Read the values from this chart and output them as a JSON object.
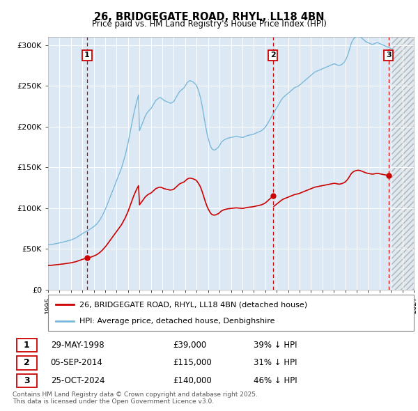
{
  "title": "26, BRIDGEGATE ROAD, RHYL, LL18 4BN",
  "subtitle": "Price paid vs. HM Land Registry's House Price Index (HPI)",
  "xlim": [
    1995,
    2027
  ],
  "ylim": [
    0,
    310000
  ],
  "yticks": [
    0,
    50000,
    100000,
    150000,
    200000,
    250000,
    300000
  ],
  "ytick_labels": [
    "£0",
    "£50K",
    "£100K",
    "£150K",
    "£200K",
    "£250K",
    "£300K"
  ],
  "bg_color": "#dce9f5",
  "hpi_color": "#7ab8d9",
  "price_color": "#cc0000",
  "dashed_line_color": "#cc0000",
  "legend_label_price": "26, BRIDGEGATE ROAD, RHYL, LL18 4BN (detached house)",
  "legend_label_hpi": "HPI: Average price, detached house, Denbighshire",
  "transactions": [
    {
      "num": 1,
      "date": "29-MAY-1998",
      "year": 1998.42,
      "price": 39000,
      "pct": "39%",
      "dir": "↓"
    },
    {
      "num": 2,
      "date": "05-SEP-2014",
      "year": 2014.68,
      "price": 115000,
      "pct": "31%",
      "dir": "↓"
    },
    {
      "num": 3,
      "date": "25-OCT-2024",
      "year": 2024.81,
      "price": 140000,
      "pct": "46%",
      "dir": "↓"
    }
  ],
  "footer": "Contains HM Land Registry data © Crown copyright and database right 2025.\nThis data is licensed under the Open Government Licence v3.0.",
  "hpi_data_years": [
    1995.0,
    1995.083,
    1995.167,
    1995.25,
    1995.333,
    1995.417,
    1995.5,
    1995.583,
    1995.667,
    1995.75,
    1995.833,
    1995.917,
    1996.0,
    1996.083,
    1996.167,
    1996.25,
    1996.333,
    1996.417,
    1996.5,
    1996.583,
    1996.667,
    1996.75,
    1996.833,
    1996.917,
    1997.0,
    1997.083,
    1997.167,
    1997.25,
    1997.333,
    1997.417,
    1997.5,
    1997.583,
    1997.667,
    1997.75,
    1997.833,
    1997.917,
    1998.0,
    1998.083,
    1998.167,
    1998.25,
    1998.333,
    1998.417,
    1998.5,
    1998.583,
    1998.667,
    1998.75,
    1998.833,
    1998.917,
    1999.0,
    1999.083,
    1999.167,
    1999.25,
    1999.333,
    1999.417,
    1999.5,
    1999.583,
    1999.667,
    1999.75,
    1999.833,
    1999.917,
    2000.0,
    2000.083,
    2000.167,
    2000.25,
    2000.333,
    2000.417,
    2000.5,
    2000.583,
    2000.667,
    2000.75,
    2000.833,
    2000.917,
    2001.0,
    2001.083,
    2001.167,
    2001.25,
    2001.333,
    2001.417,
    2001.5,
    2001.583,
    2001.667,
    2001.75,
    2001.833,
    2001.917,
    2002.0,
    2002.083,
    2002.167,
    2002.25,
    2002.333,
    2002.417,
    2002.5,
    2002.583,
    2002.667,
    2002.75,
    2002.833,
    2002.917,
    2003.0,
    2003.083,
    2003.167,
    2003.25,
    2003.333,
    2003.417,
    2003.5,
    2003.583,
    2003.667,
    2003.75,
    2003.833,
    2003.917,
    2004.0,
    2004.083,
    2004.167,
    2004.25,
    2004.333,
    2004.417,
    2004.5,
    2004.583,
    2004.667,
    2004.75,
    2004.833,
    2004.917,
    2005.0,
    2005.083,
    2005.167,
    2005.25,
    2005.333,
    2005.417,
    2005.5,
    2005.583,
    2005.667,
    2005.75,
    2005.833,
    2005.917,
    2006.0,
    2006.083,
    2006.167,
    2006.25,
    2006.333,
    2006.417,
    2006.5,
    2006.583,
    2006.667,
    2006.75,
    2006.833,
    2006.917,
    2007.0,
    2007.083,
    2007.167,
    2007.25,
    2007.333,
    2007.417,
    2007.5,
    2007.583,
    2007.667,
    2007.75,
    2007.833,
    2007.917,
    2008.0,
    2008.083,
    2008.167,
    2008.25,
    2008.333,
    2008.417,
    2008.5,
    2008.583,
    2008.667,
    2008.75,
    2008.833,
    2008.917,
    2009.0,
    2009.083,
    2009.167,
    2009.25,
    2009.333,
    2009.417,
    2009.5,
    2009.583,
    2009.667,
    2009.75,
    2009.833,
    2009.917,
    2010.0,
    2010.083,
    2010.167,
    2010.25,
    2010.333,
    2010.417,
    2010.5,
    2010.583,
    2010.667,
    2010.75,
    2010.833,
    2010.917,
    2011.0,
    2011.083,
    2011.167,
    2011.25,
    2011.333,
    2011.417,
    2011.5,
    2011.583,
    2011.667,
    2011.75,
    2011.833,
    2011.917,
    2012.0,
    2012.083,
    2012.167,
    2012.25,
    2012.333,
    2012.417,
    2012.5,
    2012.583,
    2012.667,
    2012.75,
    2012.833,
    2012.917,
    2013.0,
    2013.083,
    2013.167,
    2013.25,
    2013.333,
    2013.417,
    2013.5,
    2013.583,
    2013.667,
    2013.75,
    2013.833,
    2013.917,
    2014.0,
    2014.083,
    2014.167,
    2014.25,
    2014.333,
    2014.417,
    2014.5,
    2014.583,
    2014.667,
    2014.75,
    2014.833,
    2014.917,
    2015.0,
    2015.083,
    2015.167,
    2015.25,
    2015.333,
    2015.417,
    2015.5,
    2015.583,
    2015.667,
    2015.75,
    2015.833,
    2015.917,
    2016.0,
    2016.083,
    2016.167,
    2016.25,
    2016.333,
    2016.417,
    2016.5,
    2016.583,
    2016.667,
    2016.75,
    2016.833,
    2016.917,
    2017.0,
    2017.083,
    2017.167,
    2017.25,
    2017.333,
    2017.417,
    2017.5,
    2017.583,
    2017.667,
    2017.75,
    2017.833,
    2017.917,
    2018.0,
    2018.083,
    2018.167,
    2018.25,
    2018.333,
    2018.417,
    2018.5,
    2018.583,
    2018.667,
    2018.75,
    2018.833,
    2018.917,
    2019.0,
    2019.083,
    2019.167,
    2019.25,
    2019.333,
    2019.417,
    2019.5,
    2019.583,
    2019.667,
    2019.75,
    2019.833,
    2019.917,
    2020.0,
    2020.083,
    2020.167,
    2020.25,
    2020.333,
    2020.417,
    2020.5,
    2020.583,
    2020.667,
    2020.75,
    2020.833,
    2020.917,
    2021.0,
    2021.083,
    2021.167,
    2021.25,
    2021.333,
    2021.417,
    2021.5,
    2021.583,
    2021.667,
    2021.75,
    2021.833,
    2021.917,
    2022.0,
    2022.083,
    2022.167,
    2022.25,
    2022.333,
    2022.417,
    2022.5,
    2022.583,
    2022.667,
    2022.75,
    2022.833,
    2022.917,
    2023.0,
    2023.083,
    2023.167,
    2023.25,
    2023.333,
    2023.417,
    2023.5,
    2023.583,
    2023.667,
    2023.75,
    2023.833,
    2023.917,
    2024.0,
    2024.083,
    2024.167,
    2024.25,
    2024.333,
    2024.417,
    2024.5,
    2024.583,
    2024.667,
    2024.75,
    2024.833,
    2024.917,
    2025.0
  ],
  "hpi_data_values": [
    55000,
    55200,
    55100,
    55300,
    55500,
    55800,
    56000,
    56300,
    56500,
    56700,
    57000,
    57200,
    57500,
    57800,
    58000,
    58200,
    58500,
    58800,
    59200,
    59500,
    59800,
    60100,
    60400,
    60700,
    61000,
    61500,
    62000,
    62500,
    63000,
    63500,
    64200,
    65000,
    65800,
    66500,
    67200,
    68000,
    68800,
    69500,
    70200,
    70800,
    71500,
    72000,
    72800,
    73500,
    74200,
    75000,
    75800,
    76500,
    77500,
    78500,
    79500,
    80500,
    82000,
    83500,
    85000,
    87000,
    89000,
    91000,
    93500,
    96000,
    98500,
    101000,
    104000,
    107000,
    110000,
    113000,
    116000,
    119000,
    122000,
    125000,
    128000,
    131000,
    134000,
    137000,
    140000,
    143000,
    146000,
    149000,
    153000,
    157000,
    161000,
    165000,
    170000,
    175000,
    180000,
    186000,
    192000,
    198000,
    204000,
    210000,
    216000,
    221000,
    226000,
    231000,
    235000,
    239000,
    195000,
    198000,
    201000,
    204000,
    207000,
    210000,
    213000,
    215000,
    217000,
    218500,
    220000,
    221000,
    222000,
    224000,
    226000,
    228000,
    230000,
    232000,
    233000,
    234000,
    235000,
    235500,
    235500,
    235000,
    234000,
    233000,
    232000,
    231500,
    231000,
    230500,
    230000,
    229500,
    229000,
    229000,
    229500,
    230000,
    231000,
    233000,
    235000,
    237000,
    239000,
    241000,
    243000,
    244000,
    245000,
    246000,
    247000,
    248000,
    250000,
    252000,
    254000,
    255000,
    256000,
    256500,
    256000,
    255500,
    255000,
    254000,
    253000,
    252000,
    250000,
    247000,
    244000,
    240000,
    236000,
    230000,
    224000,
    217000,
    210000,
    203000,
    197000,
    191000,
    186000,
    182000,
    178000,
    175000,
    173000,
    172000,
    171500,
    171500,
    172000,
    173000,
    174000,
    175000,
    177000,
    179000,
    181000,
    182000,
    183000,
    184000,
    184500,
    185000,
    185500,
    186000,
    186200,
    186500,
    186800,
    187000,
    187200,
    187500,
    187800,
    188000,
    188000,
    187800,
    187600,
    187400,
    187200,
    187000,
    186800,
    187000,
    187500,
    188000,
    188500,
    189000,
    189200,
    189500,
    189800,
    190000,
    190200,
    190500,
    191000,
    191500,
    192000,
    192500,
    193000,
    193500,
    194000,
    194500,
    195000,
    196000,
    197000,
    198000,
    199500,
    201000,
    203000,
    205000,
    207000,
    209000,
    211000,
    213000,
    215000,
    217000,
    219000,
    221000,
    223000,
    225000,
    227000,
    229000,
    231000,
    233000,
    234500,
    236000,
    237000,
    238000,
    239000,
    240000,
    241000,
    242000,
    243000,
    244000,
    245000,
    246000,
    247000,
    248000,
    248500,
    249000,
    249500,
    250000,
    251000,
    252000,
    253000,
    254000,
    255000,
    256000,
    257000,
    258000,
    259000,
    260000,
    261000,
    262000,
    263000,
    264000,
    265000,
    266000,
    267000,
    267500,
    268000,
    268500,
    269000,
    269500,
    270000,
    270500,
    271000,
    271500,
    272000,
    272500,
    273000,
    273500,
    274000,
    274500,
    275000,
    275500,
    276000,
    276500,
    277000,
    277000,
    276500,
    276000,
    275500,
    275000,
    275000,
    275500,
    276000,
    277000,
    278000,
    279000,
    281000,
    283000,
    286000,
    289000,
    293000,
    297000,
    301000,
    304000,
    306000,
    308000,
    309000,
    310000,
    310500,
    311000,
    311000,
    310500,
    310000,
    309000,
    308000,
    307000,
    306000,
    305000,
    304000,
    303500,
    303000,
    302500,
    302000,
    301500,
    301000,
    301000,
    301500,
    302000,
    302500,
    303000,
    303000,
    302500,
    302000,
    301500,
    301000,
    300500,
    300000,
    299500,
    299000,
    298500,
    298000,
    297500,
    297000,
    296500,
    296000
  ]
}
